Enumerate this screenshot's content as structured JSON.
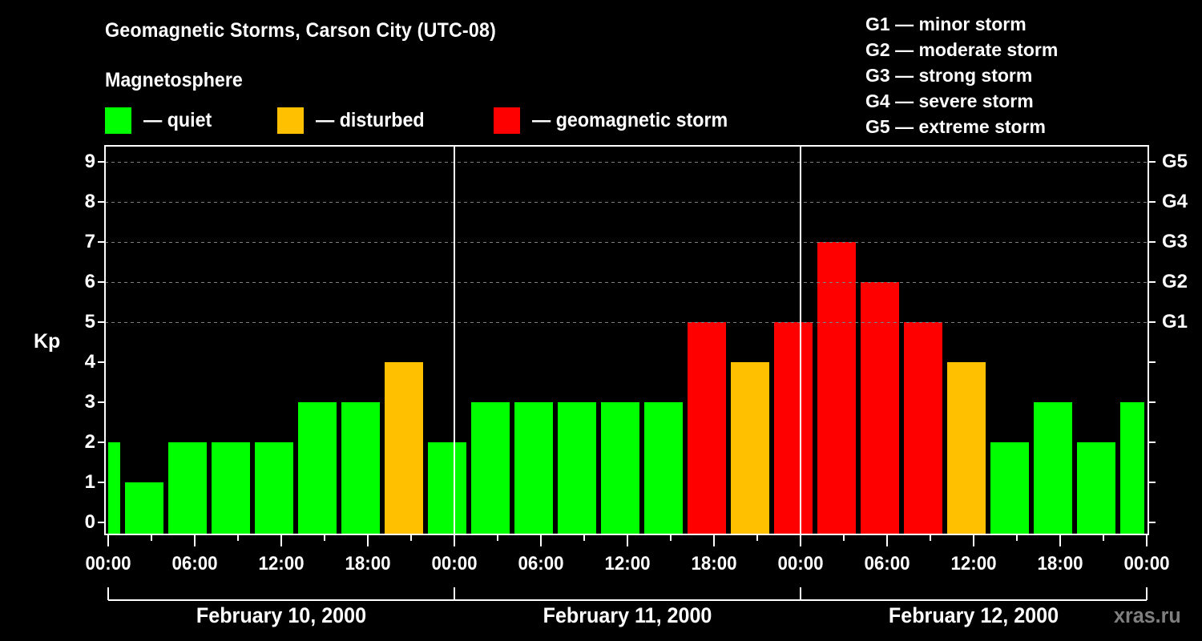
{
  "header": {
    "title": "Geomagnetic Storms, Carson City (UTC-08)",
    "subtitle": "Magnetosphere"
  },
  "legend": {
    "items": [
      {
        "label": "— quiet",
        "color": "#00ff00"
      },
      {
        "label": "— disturbed",
        "color": "#ffc000"
      },
      {
        "label": "— geomagnetic storm",
        "color": "#ff0000"
      }
    ]
  },
  "g_scale_legend": [
    "G1 — minor storm",
    "G2 — moderate storm",
    "G3 — strong storm",
    "G4 — severe storm",
    "G5 — extreme storm"
  ],
  "axes": {
    "ylabel": "Kp",
    "y_ticks": [
      "0",
      "1",
      "2",
      "3",
      "4",
      "5",
      "6",
      "7",
      "8",
      "9"
    ],
    "g_ticks": [
      {
        "label": "G1",
        "kp": 5
      },
      {
        "label": "G2",
        "kp": 6
      },
      {
        "label": "G3",
        "kp": 7
      },
      {
        "label": "G4",
        "kp": 8
      },
      {
        "label": "G5",
        "kp": 9
      }
    ],
    "x_ticks": [
      "00:00",
      "06:00",
      "12:00",
      "18:00",
      "00:00",
      "06:00",
      "12:00",
      "18:00",
      "00:00",
      "06:00",
      "12:00",
      "18:00",
      "00:00"
    ],
    "dates": [
      "February 10, 2000",
      "February 11, 2000",
      "February 12, 2000"
    ]
  },
  "watermark": "xras.ru",
  "colors": {
    "quiet": "#00ff00",
    "disturbed": "#ffc000",
    "storm": "#ff0000",
    "grid": "#808080",
    "axis": "#ffffff",
    "background": "#000000"
  },
  "chart_data": {
    "type": "bar",
    "title": "Geomagnetic Storms, Carson City (UTC-08)",
    "subtitle": "Magnetosphere",
    "xlabel": "",
    "ylabel": "Kp",
    "ylim": [
      0,
      9
    ],
    "y2_labels": {
      "5": "G1",
      "6": "G2",
      "7": "G3",
      "8": "G4",
      "9": "G5"
    },
    "grid": "dashed horizontal at Kp 5-9",
    "legend_position": "top",
    "interval_hours": 3,
    "categories": [
      "Feb 10 00:00 (partial)",
      "Feb 10 03:00",
      "Feb 10 06:00",
      "Feb 10 09:00",
      "Feb 10 12:00",
      "Feb 10 15:00",
      "Feb 10 18:00",
      "Feb 10 21:00",
      "Feb 11 00:00",
      "Feb 11 03:00",
      "Feb 11 06:00",
      "Feb 11 09:00",
      "Feb 11 12:00",
      "Feb 11 15:00",
      "Feb 11 18:00",
      "Feb 11 21:00",
      "Feb 12 00:00",
      "Feb 12 03:00",
      "Feb 12 06:00",
      "Feb 12 09:00",
      "Feb 12 12:00",
      "Feb 12 15:00",
      "Feb 12 18:00",
      "Feb 12 21:00",
      "Feb 13 00:00 (partial)"
    ],
    "values": [
      2,
      1,
      2,
      2,
      2,
      3,
      3,
      4,
      2,
      3,
      3,
      3,
      3,
      3,
      5,
      4,
      5,
      7,
      6,
      5,
      4,
      2,
      3,
      2,
      3
    ],
    "status": [
      "quiet",
      "quiet",
      "quiet",
      "quiet",
      "quiet",
      "quiet",
      "quiet",
      "disturbed",
      "quiet",
      "quiet",
      "quiet",
      "quiet",
      "quiet",
      "quiet",
      "storm",
      "disturbed",
      "storm",
      "storm",
      "storm",
      "storm",
      "disturbed",
      "quiet",
      "quiet",
      "quiet",
      "quiet"
    ]
  }
}
